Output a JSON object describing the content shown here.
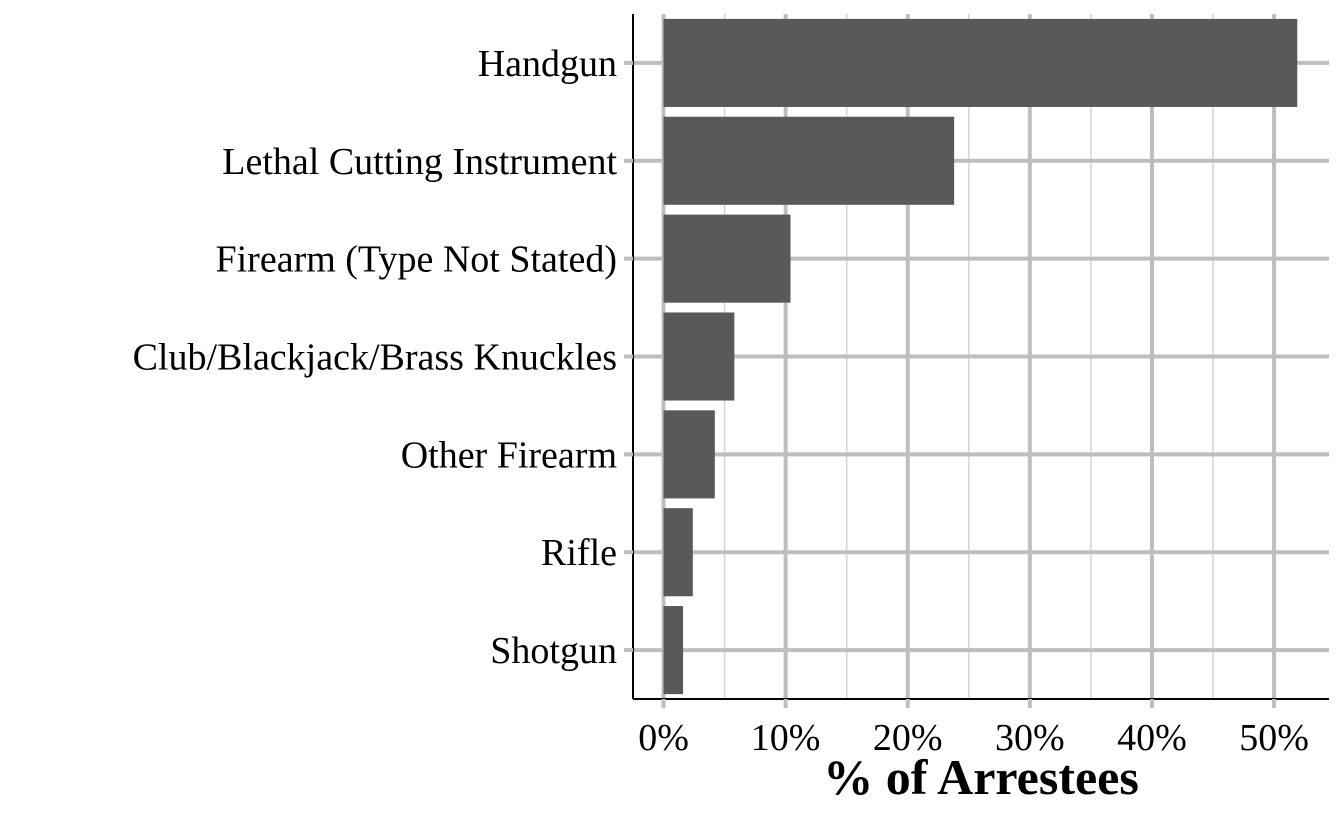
{
  "chart_data": {
    "type": "bar",
    "orientation": "horizontal",
    "title": "",
    "xlabel": "% of Arrestees",
    "ylabel": "",
    "categories": [
      "Handgun",
      "Lethal Cutting Instrument",
      "Firearm (Type Not Stated)",
      "Club/Blackjack/Brass Knuckles",
      "Other Firearm",
      "Rifle",
      "Shotgun"
    ],
    "values": [
      51.9,
      23.8,
      10.4,
      5.8,
      4.2,
      2.4,
      1.6
    ],
    "xlim": [
      -2.5,
      54.5
    ],
    "x_ticks": [
      0,
      10,
      20,
      30,
      40,
      50
    ],
    "x_tick_labels": [
      "0%",
      "10%",
      "20%",
      "30%",
      "40%",
      "50%"
    ],
    "grid": true,
    "legend": "none",
    "colors": {
      "bar": "#595959",
      "grid_major": "#bebebe",
      "grid_minor": "#d4d4d4",
      "axis": "#000000",
      "text": "#000000"
    }
  }
}
